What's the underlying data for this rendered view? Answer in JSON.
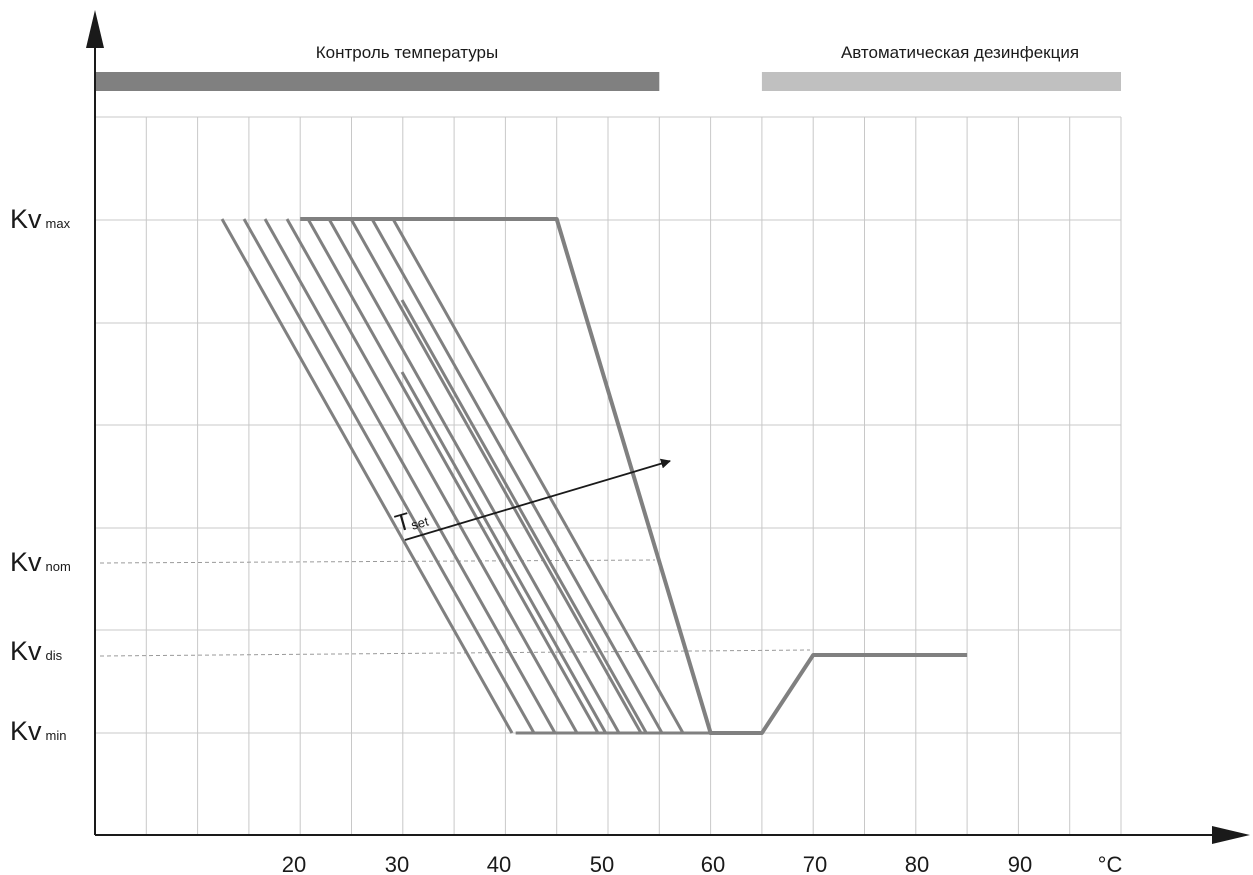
{
  "chart_data": {
    "type": "line",
    "x_unit": "°C",
    "x_ticks": [
      20,
      30,
      40,
      50,
      60,
      70,
      80,
      90
    ],
    "xlim": [
      0,
      100
    ],
    "bands": [
      {
        "label": "Контроль температуры",
        "x_range": [
          0,
          55
        ],
        "color": "#808080"
      },
      {
        "label": "Автоматическая дезинфекция",
        "x_range": [
          65,
          100
        ],
        "color": "#c0c0c0"
      }
    ],
    "y_levels": [
      {
        "main": "Kv",
        "sub": "max"
      },
      {
        "main": "Kv",
        "sub": "nom"
      },
      {
        "main": "Kv",
        "sub": "dis"
      },
      {
        "main": "Kv",
        "sub": "min"
      }
    ],
    "tset_label": {
      "main": "T",
      "sub": "set"
    },
    "colors": {
      "grid": "#c8c8c8",
      "curve": "#808080",
      "axis": "#1a1a1a"
    }
  }
}
